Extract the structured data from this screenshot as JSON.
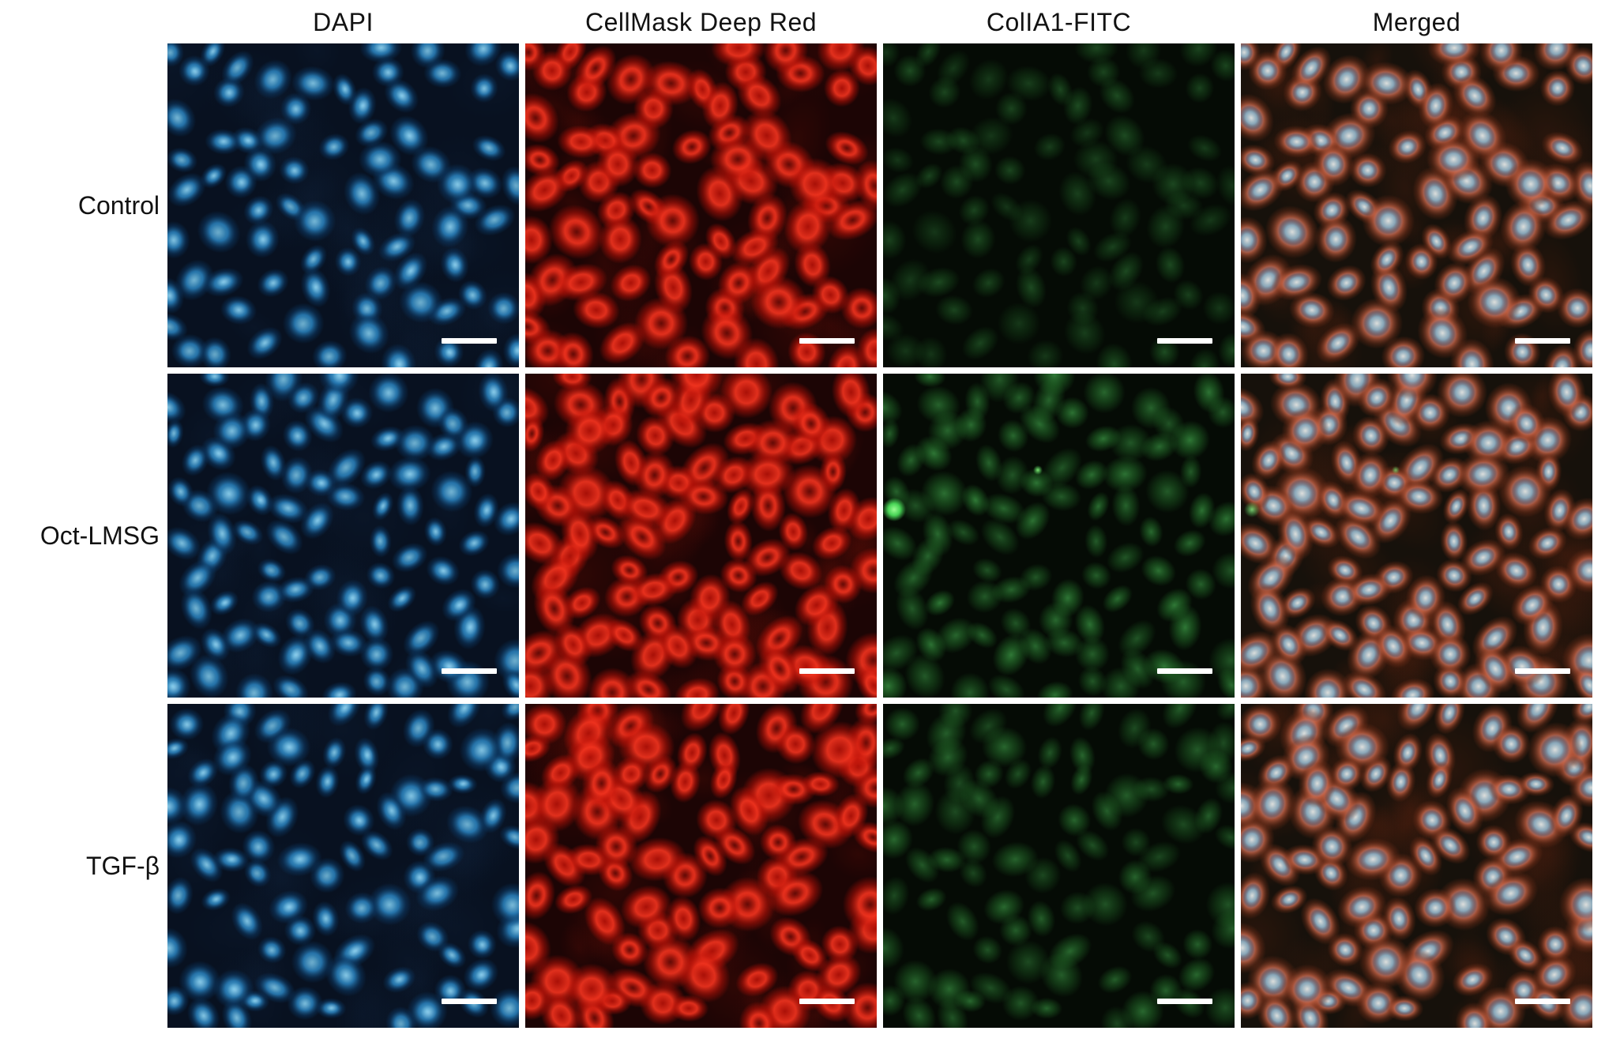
{
  "figure": {
    "column_headers": [
      "DAPI",
      "CellMask Deep Red",
      "ColIA1-FITC",
      "Merged"
    ],
    "rows": [
      {
        "label": "Control"
      },
      {
        "label": "Oct-LMSG"
      },
      {
        "label": "TGF-β"
      }
    ],
    "channel_order": [
      "dapi",
      "cellmask",
      "fitc",
      "merged"
    ],
    "cells_per_row": [
      78,
      92,
      85
    ],
    "fitc_intensity_by_row": [
      0.6,
      1.0,
      0.85
    ],
    "colors": {
      "label_text": "#121212",
      "scale_bar": "#ffffff",
      "dapi_bg": "#081120",
      "dapi_core": "#6cc6ee",
      "dapi_mid": "#2e8fd0",
      "dapi_edge": "#0d3f6e",
      "dapi_speckle": "#c2e9fb",
      "cellmask_bg": "#1c0505",
      "cellmask_bright": "#f63520",
      "cellmask_mid": "#c01208",
      "cellmask_haze": "#701008",
      "fitc_bg": "#050b05",
      "fitc_core": "#4cc258",
      "fitc_mid": "#2d8a34",
      "merged_bg": "#16110b",
      "merged_rim": "#dd7050",
      "merged_nucleus": "#8ec2dd",
      "merged_nucleus_core": "#f0f4f2"
    }
  }
}
